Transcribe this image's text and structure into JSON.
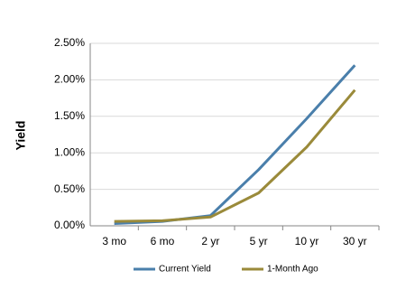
{
  "chart_data": {
    "type": "line",
    "y_label": "Yield",
    "categories": [
      "3 mo",
      "6 mo",
      "2 yr",
      "5 yr",
      "10 yr",
      "30 yr"
    ],
    "series": [
      {
        "name": "Current Yield",
        "color": "#4a7fab",
        "values": [
          0.03,
          0.06,
          0.14,
          0.77,
          1.47,
          2.2
        ]
      },
      {
        "name": "1-Month Ago",
        "color": "#9a8a3a",
        "values": [
          0.06,
          0.07,
          0.12,
          0.45,
          1.08,
          1.86
        ]
      }
    ],
    "ylim": [
      0,
      2.5
    ],
    "yticks": [
      {
        "value": 0,
        "label": "0.00%"
      },
      {
        "value": 0.5,
        "label": "0.50%"
      },
      {
        "value": 1,
        "label": "1.00%"
      },
      {
        "value": 1.5,
        "label": "1.50%"
      },
      {
        "value": 2,
        "label": "2.00%"
      },
      {
        "value": 2.5,
        "label": "2.50%"
      }
    ],
    "grid": true
  }
}
